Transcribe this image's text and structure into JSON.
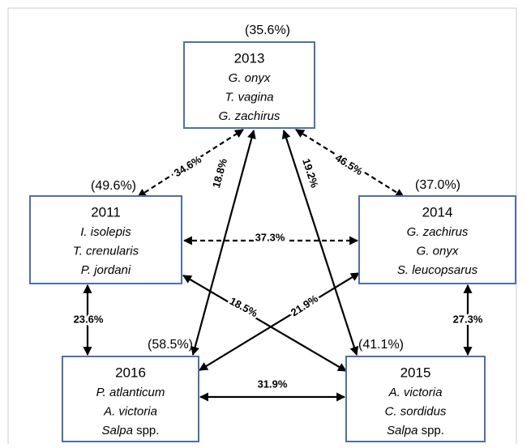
{
  "nodes": [
    {
      "percent": "(35.6%)",
      "year": "2013",
      "species": [
        "G. onyx",
        "T. vagina",
        "G. zachirus"
      ]
    },
    {
      "percent": "(49.6%)",
      "year": "2011",
      "species": [
        "I. isolepis",
        "T. crenularis",
        "P. jordani"
      ]
    },
    {
      "percent": "(37.0%)",
      "year": "2014",
      "species": [
        "G. zachirus",
        "G. onyx",
        "S. leucopsarus"
      ]
    },
    {
      "percent": "(58.5%)",
      "year": "2016",
      "species": [
        "P. atlanticum",
        "A. victoria",
        {
          "genus": "Salpa",
          "suffix": "spp."
        }
      ]
    },
    {
      "percent": "(41.1%)",
      "year": "2015",
      "species": [
        "A. victoria",
        "C. sordidus",
        {
          "genus": "Salpa",
          "suffix": "spp."
        }
      ]
    }
  ],
  "edges": [
    {
      "label": "34.6%"
    },
    {
      "label": "46.5%"
    },
    {
      "label": "37.3%"
    },
    {
      "label": "18.8%"
    },
    {
      "label": "19.2%"
    },
    {
      "label": "18.5%"
    },
    {
      "label": "21.9%"
    },
    {
      "label": "23.6%"
    },
    {
      "label": "27.3%"
    },
    {
      "label": "31.9%"
    }
  ]
}
